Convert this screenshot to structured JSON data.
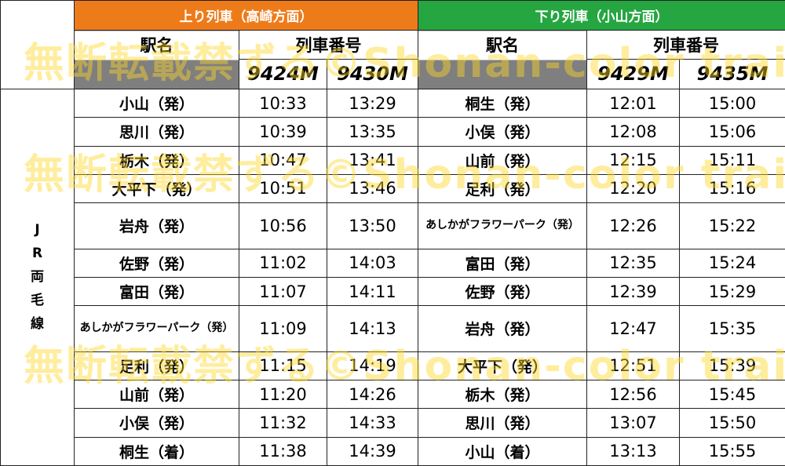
{
  "header": {
    "up_label": "上り列車（高崎方面）",
    "down_label": "下り列車（小山方面）",
    "station_col": "駅名",
    "train_col": "列車番号"
  },
  "line_name": [
    "J",
    "R",
    "両",
    "毛",
    "線"
  ],
  "trains": {
    "up": [
      "9424M",
      "9430M"
    ],
    "down": [
      "9429M",
      "9435M"
    ]
  },
  "rows": [
    {
      "up_station": "小山（発）",
      "up_t1": "10:33",
      "up_t2": "13:29",
      "down_station": "桐生（発）",
      "down_t1": "12:01",
      "down_t2": "15:00"
    },
    {
      "up_station": "思川（発）",
      "up_t1": "10:39",
      "up_t2": "13:35",
      "down_station": "小俣（発）",
      "down_t1": "12:08",
      "down_t2": "15:06"
    },
    {
      "up_station": "栃木（発）",
      "up_t1": "10:47",
      "up_t2": "13:41",
      "down_station": "山前（発）",
      "down_t1": "12:15",
      "down_t2": "15:11"
    },
    {
      "up_station": "大平下（発）",
      "up_t1": "10:51",
      "up_t2": "13:46",
      "down_station": "足利（発）",
      "down_t1": "12:20",
      "down_t2": "15:16"
    },
    {
      "up_station": "岩舟（発）",
      "up_t1": "10:56",
      "up_t2": "13:50",
      "down_station": "あしかがフラワーパーク（発）",
      "down_t1": "12:26",
      "down_t2": "15:22"
    },
    {
      "up_station": "佐野（発）",
      "up_t1": "11:02",
      "up_t2": "14:03",
      "down_station": "富田（発）",
      "down_t1": "12:35",
      "down_t2": "15:24"
    },
    {
      "up_station": "富田（発）",
      "up_t1": "11:07",
      "up_t2": "14:11",
      "down_station": "佐野（発）",
      "down_t1": "12:39",
      "down_t2": "15:29"
    },
    {
      "up_station": "あしかがフラワーパーク（発）",
      "up_t1": "11:09",
      "up_t2": "14:13",
      "down_station": "岩舟（発）",
      "down_t1": "12:47",
      "down_t2": "15:35"
    },
    {
      "up_station": "足利（発）",
      "up_t1": "11:15",
      "up_t2": "14:19",
      "down_station": "大平下（発）",
      "down_t1": "12:51",
      "down_t2": "15:39"
    },
    {
      "up_station": "山前（発）",
      "up_t1": "11:20",
      "up_t2": "14:26",
      "down_station": "栃木（発）",
      "down_t1": "12:56",
      "down_t2": "15:45"
    },
    {
      "up_station": "小俣（発）",
      "up_t1": "11:32",
      "up_t2": "14:33",
      "down_station": "思川（発）",
      "down_t1": "13:07",
      "down_t2": "15:50"
    },
    {
      "up_station": "桐生（着）",
      "up_t1": "11:38",
      "up_t2": "14:39",
      "down_station": "小山（着）",
      "down_t1": "13:13",
      "down_t2": "15:55"
    }
  ],
  "watermark": "無断転載禁ずる©Shonan-color train",
  "colors": {
    "up_header": "#ee7b1a",
    "down_header": "#25a641",
    "gray": "#7f7f7f",
    "watermark": "#ffd728"
  }
}
